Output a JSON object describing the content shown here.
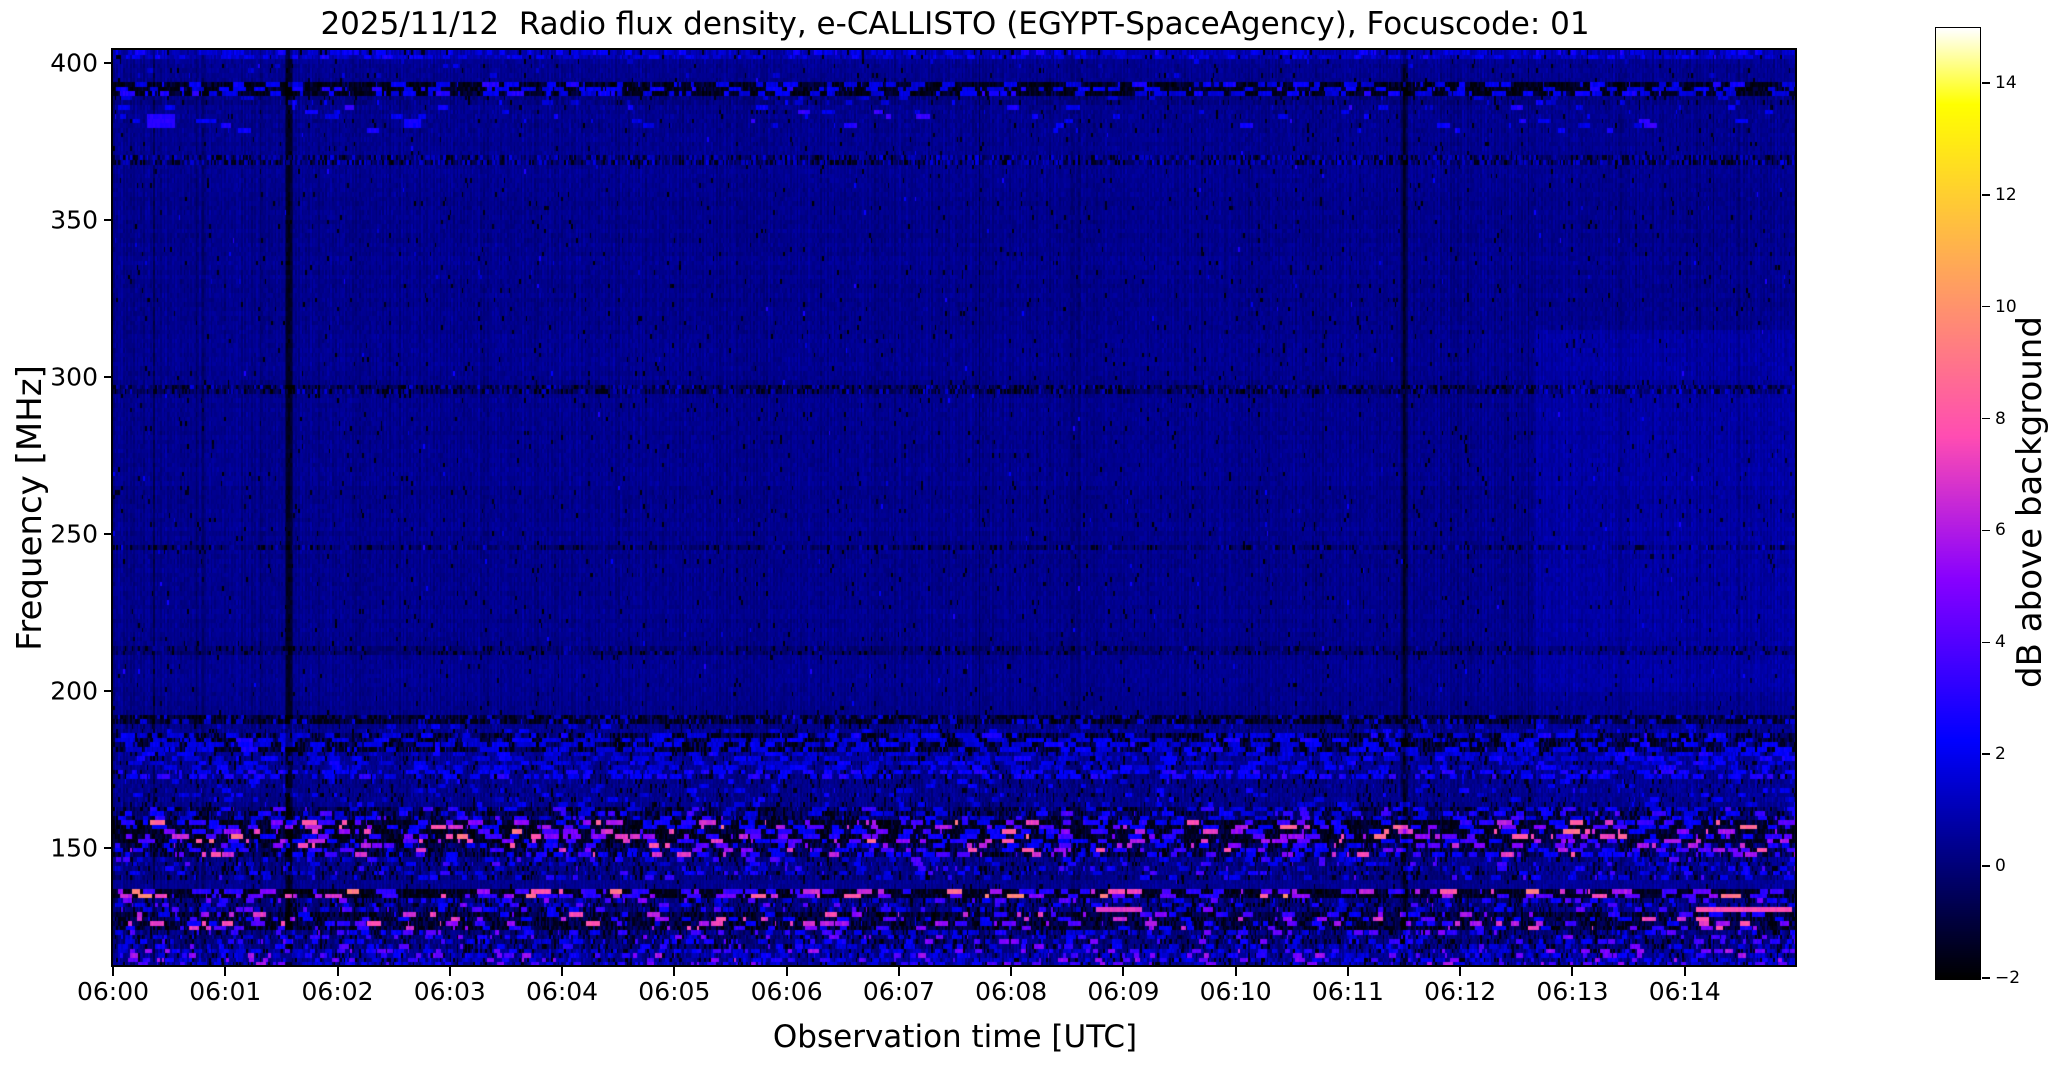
{
  "figure": {
    "title": "2025/11/12  Radio flux density, e-CALLISTO (EGYPT-SpaceAgency), Focuscode: 01",
    "xlabel": "Observation time [UTC]",
    "ylabel": "Frequency [MHz]",
    "colorbar_label": "dB above background"
  },
  "chart_data": {
    "type": "heatmap",
    "subtype": "solar-radio-spectrogram",
    "title": "2025/11/12  Radio flux density, e-CALLISTO (EGYPT-SpaceAgency), Focuscode: 01",
    "date": "2025/11/12",
    "instrument": "e-CALLISTO (EGYPT-SpaceAgency)",
    "focuscode": "01",
    "xlabel": "Observation time [UTC]",
    "ylabel": "Frequency [MHz]",
    "x_axis": {
      "start_minutes": 0,
      "end_minutes": 15,
      "ticks": [
        {
          "label": "06:00",
          "minutes": 0
        },
        {
          "label": "06:01",
          "minutes": 1
        },
        {
          "label": "06:02",
          "minutes": 2
        },
        {
          "label": "06:03",
          "minutes": 3
        },
        {
          "label": "06:04",
          "minutes": 4
        },
        {
          "label": "06:05",
          "minutes": 5
        },
        {
          "label": "06:06",
          "minutes": 6
        },
        {
          "label": "06:07",
          "minutes": 7
        },
        {
          "label": "06:08",
          "minutes": 8
        },
        {
          "label": "06:09",
          "minutes": 9
        },
        {
          "label": "06:10",
          "minutes": 10
        },
        {
          "label": "06:11",
          "minutes": 11
        },
        {
          "label": "06:12",
          "minutes": 12
        },
        {
          "label": "06:13",
          "minutes": 13
        },
        {
          "label": "06:14",
          "minutes": 14
        }
      ]
    },
    "y_axis": {
      "f_top_mhz": 404,
      "f_bottom_mhz": 112,
      "ticks": [
        {
          "label": "400",
          "mhz": 400
        },
        {
          "label": "350",
          "mhz": 350
        },
        {
          "label": "300",
          "mhz": 300
        },
        {
          "label": "250",
          "mhz": 250
        },
        {
          "label": "200",
          "mhz": 200
        },
        {
          "label": "150",
          "mhz": 150
        }
      ]
    },
    "colorbar": {
      "label": "dB above background",
      "vmin": -2,
      "vmax": 15,
      "colormap": "gnuplot2",
      "ticks": [
        {
          "label": "14",
          "value": 14
        },
        {
          "label": "12",
          "value": 12
        },
        {
          "label": "10",
          "value": 10
        },
        {
          "label": "8",
          "value": 8
        },
        {
          "label": "6",
          "value": 6
        },
        {
          "label": "4",
          "value": 4
        },
        {
          "label": "2",
          "value": 2
        },
        {
          "label": "0",
          "value": 0
        },
        {
          "label": "−2",
          "value": -2
        }
      ]
    },
    "background_level_db": 0.35,
    "features": {
      "vertical_rfi_line_minutes": [
        1.56,
        11.5
      ],
      "brighter_region": {
        "t_min": 12.65,
        "f_min": 200,
        "f_max": 315,
        "boost_db": 0.35,
        "low_boost_db": 0.15
      },
      "events": [
        {
          "t0": 0.3,
          "t1": 0.55,
          "f0": 383.5,
          "f1": 379.0,
          "db": 3.0,
          "desc": "bright blue patch"
        },
        {
          "t0": 0.73,
          "t1": 0.82,
          "f0": 382.0,
          "f1": 380.0,
          "db": 2.2,
          "desc": "blue dot"
        },
        {
          "t0": 2.58,
          "t1": 2.74,
          "f0": 381.5,
          "f1": 379.5,
          "db": 2.5,
          "desc": "blue dot"
        },
        {
          "t0": 8.75,
          "t1": 9.15,
          "f0": 130.8,
          "f1": 129.0,
          "db": 7.0,
          "desc": "pink RFI dash"
        },
        {
          "t0": 14.1,
          "t1": 14.95,
          "f0": 130.8,
          "f1": 129.0,
          "db": 7.5,
          "desc": "long pink RFI dash"
        }
      ],
      "bands": [
        {
          "f0": 404.0,
          "f1": 401.0,
          "base": 0.9,
          "noise": 0.5,
          "blackP": 0.05,
          "dashP": 0.18,
          "dashV": [
            1.5,
            2.8
          ],
          "dashLen": 3
        },
        {
          "f0": 401.0,
          "f1": 395.0,
          "base": 0.4,
          "noise": 0.3,
          "blackP": 0.02,
          "dashP": 0.01,
          "dashV": [
            1.2,
            2.0
          ],
          "dashLen": 2
        },
        {
          "f0": 394.0,
          "f1": 390.0,
          "base": -1.1,
          "noise": 0.6,
          "blackP": 0.5,
          "dashP": 0.12,
          "dashV": [
            1.6,
            3.0
          ],
          "dashLen": 5
        },
        {
          "f0": 390.0,
          "f1": 386.0,
          "base": 0.15,
          "noise": 0.4,
          "blackP": 0.05,
          "dashP": 0.02,
          "dashV": [
            1.4,
            2.4
          ],
          "dashLen": 3
        },
        {
          "f0": 386.0,
          "f1": 377.0,
          "base": 0.35,
          "noise": 0.35,
          "blackP": 0.02,
          "dashP": 0.012,
          "dashV": [
            1.8,
            3.6
          ],
          "dashLen": 4
        },
        {
          "f0": 370.0,
          "f1": 367.0,
          "base": -0.2,
          "noise": 0.8,
          "blackP": 0.3,
          "dashP": 0.3,
          "dashV": [
            0.9,
            1.8
          ],
          "dashLen": 1
        },
        {
          "f0": 297.0,
          "f1": 294.5,
          "base": -0.3,
          "noise": 0.6,
          "blackP": 0.3,
          "dashP": 0.15,
          "dashV": [
            0.8,
            1.6
          ],
          "dashLen": 1
        },
        {
          "f0": 246.5,
          "f1": 244.5,
          "base": -0.1,
          "noise": 0.5,
          "blackP": 0.18,
          "dashP": 0.08,
          "dashV": [
            0.7,
            1.3
          ],
          "dashLen": 1
        },
        {
          "f0": 214.0,
          "f1": 212.0,
          "base": 0.0,
          "noise": 0.45,
          "blackP": 0.12,
          "dashP": 0.05,
          "dashV": [
            0.7,
            1.2
          ],
          "dashLen": 1
        },
        {
          "f0": 193.0,
          "f1": 190.0,
          "base": -0.7,
          "noise": 0.6,
          "blackP": 0.4,
          "dashP": 0.1,
          "dashV": [
            1.0,
            2.0
          ],
          "dashLen": 2
        },
        {
          "f0": 190.0,
          "f1": 186.0,
          "base": 0.35,
          "noise": 0.4,
          "blackP": 0.06,
          "dashP": 0.03,
          "dashV": [
            1.4,
            2.2
          ],
          "dashLen": 3
        },
        {
          "f0": 186.0,
          "f1": 181.0,
          "base": -0.4,
          "noise": 0.8,
          "blackP": 0.42,
          "dashP": 0.12,
          "dashV": [
            1.5,
            2.8
          ],
          "dashLen": 6
        },
        {
          "f0": 181.0,
          "f1": 175.5,
          "base": 0.5,
          "noise": 0.5,
          "blackP": 0.1,
          "dashP": 0.1,
          "dashV": [
            1.5,
            2.6
          ],
          "dashLen": 5
        },
        {
          "f0": 175.5,
          "f1": 171.5,
          "base": 0.3,
          "noise": 0.5,
          "blackP": 0.12,
          "dashP": 0.2,
          "dashV": [
            2.0,
            3.2
          ],
          "dashLen": 4
        },
        {
          "f0": 171.5,
          "f1": 163.0,
          "base": 0.35,
          "noise": 0.45,
          "blackP": 0.08,
          "dashP": 0.03,
          "dashV": [
            1.5,
            2.5
          ],
          "dashLen": 3
        },
        {
          "f0": 163.0,
          "f1": 158.0,
          "base": -0.2,
          "noise": 0.7,
          "blackP": 0.28,
          "dashP": 0.1,
          "dashV": [
            1.5,
            4.0
          ],
          "dashLen": 4
        },
        {
          "f0": 158.0,
          "f1": 152.0,
          "base": -1.0,
          "noise": 0.6,
          "blackP": 0.5,
          "dashP": 0.13,
          "dashV": [
            2.0,
            9.0
          ],
          "dashLen": 5
        },
        {
          "f0": 152.0,
          "f1": 147.0,
          "base": -0.4,
          "noise": 0.8,
          "blackP": 0.33,
          "dashP": 0.15,
          "dashV": [
            2.0,
            8.0
          ],
          "dashLen": 4
        },
        {
          "f0": 147.0,
          "f1": 140.0,
          "base": 0.2,
          "noise": 0.6,
          "blackP": 0.12,
          "dashP": 0.08,
          "dashV": [
            1.5,
            4.0
          ],
          "dashLen": 3
        },
        {
          "f0": 137.0,
          "f1": 133.5,
          "base": -1.1,
          "noise": 0.5,
          "blackP": 0.55,
          "dashP": 0.1,
          "dashV": [
            3.0,
            10.0
          ],
          "dashLen": 6
        },
        {
          "f0": 133.5,
          "f1": 129.0,
          "base": 0.0,
          "noise": 0.7,
          "blackP": 0.2,
          "dashP": 0.1,
          "dashV": [
            1.5,
            5.0
          ],
          "dashLen": 3
        },
        {
          "f0": 129.0,
          "f1": 124.0,
          "base": -0.6,
          "noise": 0.6,
          "blackP": 0.4,
          "dashP": 0.08,
          "dashV": [
            2.0,
            8.0
          ],
          "dashLen": 4
        },
        {
          "f0": 124.0,
          "f1": 118.0,
          "base": 0.1,
          "noise": 0.7,
          "blackP": 0.18,
          "dashP": 0.12,
          "dashV": [
            1.5,
            5.0
          ],
          "dashLen": 3
        },
        {
          "f0": 118.0,
          "f1": 112.0,
          "base": 0.5,
          "noise": 0.8,
          "blackP": 0.12,
          "dashP": 0.18,
          "dashV": [
            1.5,
            6.0
          ],
          "dashLen": 3
        }
      ]
    },
    "render_seed": 987123
  }
}
